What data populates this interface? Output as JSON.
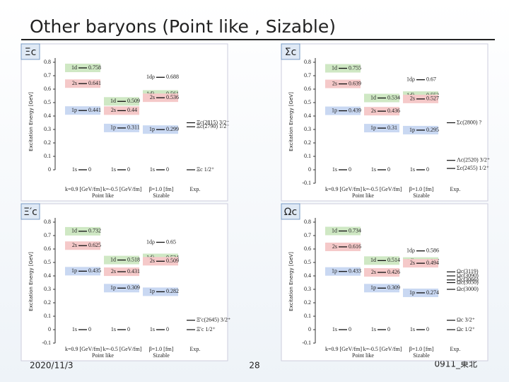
{
  "header": {
    "title": "Other baryons (Point like , Sizable)"
  },
  "level_colors": {
    "1d": "#cfe8c4",
    "2s": "#f5c9c9",
    "1p": "#c9d8f2",
    "1dλ": "#cfe8c4"
  },
  "panels": [
    {
      "name": "Ξc",
      "y_axis_label": "Excitation Energy [GeV]",
      "yticks": [
        0,
        0.1,
        0.2,
        0.3,
        0.4,
        0.5,
        0.6,
        0.7,
        0.8
      ],
      "group_labels": [
        "Point like",
        "Sizable"
      ],
      "columns": [
        {
          "label": "k=0.9 [GeV/fm]",
          "levels": [
            {
              "state": "1d",
              "value": 0.758
            },
            {
              "state": "2s",
              "value": 0.641
            },
            {
              "state": "1p",
              "value": 0.441
            },
            {
              "state": "1s",
              "value": 0
            }
          ]
        },
        {
          "label": "k=-0.5 [GeV/fm]",
          "levels": [
            {
              "state": "1d",
              "value": 0.509
            },
            {
              "state": "2s",
              "value": 0.44
            },
            {
              "state": "1p",
              "value": 0.311
            },
            {
              "state": "1s",
              "value": 0
            }
          ]
        },
        {
          "label": "β=1.0 [fm]",
          "levels": [
            {
              "state": "1dρ",
              "value": 0.688
            },
            {
              "state": "1dλ",
              "value": 0.561
            },
            {
              "state": "2s",
              "value": 0.536
            },
            {
              "state": "1p",
              "value": 0.299
            },
            {
              "state": "1s",
              "value": 0
            }
          ]
        },
        {
          "label": "Exp.",
          "exp": [
            {
              "state": "Ξc(2815) 3/2⁻",
              "value": 0.35
            },
            {
              "state": "Ξc(2790) 1/2⁻",
              "value": 0.32
            },
            {
              "state": "Ξc 1/2⁺",
              "value": 0
            }
          ]
        }
      ]
    },
    {
      "name": "Σc",
      "y_axis_label": "Excitation Energy [GeV]",
      "yticks": [
        -0.1,
        0,
        0.1,
        0.2,
        0.3,
        0.4,
        0.5,
        0.6,
        0.7,
        0.8
      ],
      "group_labels": [
        "Point like",
        "Sizable"
      ],
      "columns": [
        {
          "label": "k=0.9 [GeV/fm]",
          "levels": [
            {
              "state": "1d",
              "value": 0.755
            },
            {
              "state": "2s",
              "value": 0.639
            },
            {
              "state": "1p",
              "value": 0.439
            },
            {
              "state": "1s",
              "value": 0
            }
          ]
        },
        {
          "label": "k=-0.5 [GeV/fm]",
          "levels": [
            {
              "state": "1d",
              "value": 0.534
            },
            {
              "state": "2s",
              "value": 0.436
            },
            {
              "state": "1p",
              "value": 0.31
            },
            {
              "state": "1s",
              "value": 0
            }
          ]
        },
        {
          "label": "β=1.0 [fm]",
          "levels": [
            {
              "state": "1dρ",
              "value": 0.67
            },
            {
              "state": "1dλ",
              "value": 0.552
            },
            {
              "state": "2s",
              "value": 0.527
            },
            {
              "state": "1p",
              "value": 0.295
            },
            {
              "state": "1s",
              "value": 0
            }
          ]
        },
        {
          "label": "Exp.",
          "exp": [
            {
              "state": "Σc(2800) ?",
              "value": 0.35
            },
            {
              "state": "Λc(2520) 3/2⁺",
              "value": 0.07
            },
            {
              "state": "Σc(2455) 1/2⁺",
              "value": 0.01
            }
          ]
        }
      ]
    },
    {
      "name": "Ξ′c",
      "y_axis_label": "Excitation Energy [GeV]",
      "yticks": [
        -0.1,
        0,
        0.1,
        0.2,
        0.3,
        0.4,
        0.5,
        0.6,
        0.7,
        0.8
      ],
      "group_labels": [
        "Point like",
        "Sizable"
      ],
      "columns": [
        {
          "label": "k=0.9 [GeV/fm]",
          "levels": [
            {
              "state": "1d",
              "value": 0.732
            },
            {
              "state": "2s",
              "value": 0.625
            },
            {
              "state": "1p",
              "value": 0.435
            },
            {
              "state": "1s",
              "value": 0
            }
          ]
        },
        {
          "label": "k=-0.5 [GeV/fm]",
          "levels": [
            {
              "state": "1d",
              "value": 0.518
            },
            {
              "state": "2s",
              "value": 0.431
            },
            {
              "state": "1p",
              "value": 0.309
            },
            {
              "state": "1s",
              "value": 0
            }
          ]
        },
        {
          "label": "β=1.0 [fm]",
          "levels": [
            {
              "state": "1dρ",
              "value": 0.65
            },
            {
              "state": "1dλ",
              "value": 0.534
            },
            {
              "state": "2s",
              "value": 0.509
            },
            {
              "state": "1p",
              "value": 0.282
            },
            {
              "state": "1s",
              "value": 0
            }
          ]
        },
        {
          "label": "Exp.",
          "exp": [
            {
              "state": "Ξ′c(2645) 3/2⁺",
              "value": 0.07
            },
            {
              "state": "Ξ′c 1/2⁺",
              "value": 0
            }
          ]
        }
      ]
    },
    {
      "name": "Ωc",
      "y_axis_label": "Excitation Energy [GeV]",
      "yticks": [
        -0.1,
        0,
        0.1,
        0.2,
        0.3,
        0.4,
        0.5,
        0.6,
        0.7,
        0.8
      ],
      "group_labels": [
        "Point like",
        "Sizable"
      ],
      "columns": [
        {
          "label": "k=0.9 [GeV/fm]",
          "levels": [
            {
              "state": "1d",
              "value": 0.734
            },
            {
              "state": "2s",
              "value": 0.616
            },
            {
              "state": "1p",
              "value": 0.433
            },
            {
              "state": "1s",
              "value": 0
            }
          ]
        },
        {
          "label": "k=-0.5 [GeV/fm]",
          "levels": [
            {
              "state": "1d",
              "value": 0.514
            },
            {
              "state": "2s",
              "value": 0.426
            },
            {
              "state": "1p",
              "value": 0.309
            },
            {
              "state": "1s",
              "value": 0
            }
          ]
        },
        {
          "label": "β=1.0 [fm]",
          "levels": [
            {
              "state": "1dρ",
              "value": 0.586
            },
            {
              "state": "1dλ",
              "value": 0.507
            },
            {
              "state": "2s",
              "value": 0.494
            },
            {
              "state": "1p",
              "value": 0.274
            },
            {
              "state": "1s",
              "value": 0
            }
          ]
        },
        {
          "label": "Exp.",
          "exp": [
            {
              "state": "Ωc(3119)",
              "value": 0.43
            },
            {
              "state": "Ωc(3090)",
              "value": 0.4
            },
            {
              "state": "Ωc(3066)",
              "value": 0.37
            },
            {
              "state": "Ωc(3050)",
              "value": 0.35
            },
            {
              "state": "Ωc(3000)",
              "value": 0.3
            },
            {
              "state": "Ωc 3/2⁺",
              "value": 0.07
            },
            {
              "state": "Ωc 1/2⁺",
              "value": 0
            }
          ]
        }
      ]
    }
  ],
  "footer": {
    "date": "2020/11/3",
    "page": "28",
    "venue": "0911_東北"
  }
}
